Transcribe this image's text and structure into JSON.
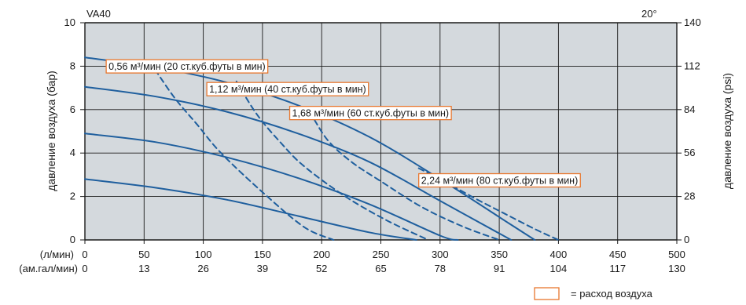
{
  "chart_data": {
    "type": "line",
    "title": "VA40",
    "temperature_label": "20°",
    "ylabel_left": "давление воздуха (бар)",
    "ylabel_right": "давление воздуха (psi)",
    "x_unit_primary": "(л/мин)",
    "x_unit_secondary": "(ам.гал/мин)",
    "xlim": [
      0,
      500
    ],
    "ylim": [
      0,
      10
    ],
    "ylim_right": [
      0,
      140
    ],
    "x_ticks": [
      "0",
      "50",
      "100",
      "150",
      "200",
      "250",
      "300",
      "350",
      "400",
      "450",
      "500"
    ],
    "x_ticks_secondary": [
      "0",
      "13",
      "26",
      "39",
      "52",
      "65",
      "78",
      "91",
      "104",
      "117",
      "130"
    ],
    "y_ticks_left": [
      "0",
      "2",
      "4",
      "6",
      "8",
      "10"
    ],
    "y_ticks_right": [
      "0",
      "28",
      "56",
      "84",
      "112",
      "140"
    ],
    "grid": true,
    "series": [
      {
        "style": "solid",
        "x": [
          0,
          60,
          120,
          180,
          240,
          300,
          360,
          380
        ],
        "y": [
          8.4,
          7.95,
          7.25,
          6.2,
          4.75,
          2.8,
          0.7,
          0
        ]
      },
      {
        "style": "solid",
        "x": [
          0,
          60,
          120,
          180,
          240,
          300,
          360
        ],
        "y": [
          7.05,
          6.6,
          5.9,
          4.9,
          3.6,
          1.8,
          0
        ]
      },
      {
        "style": "solid",
        "x": [
          0,
          60,
          120,
          180,
          240,
          300,
          315
        ],
        "y": [
          4.9,
          4.5,
          3.8,
          2.85,
          1.65,
          0.2,
          0
        ]
      },
      {
        "style": "solid",
        "x": [
          0,
          60,
          120,
          180,
          240,
          280
        ],
        "y": [
          2.8,
          2.4,
          1.85,
          1.1,
          0.35,
          0
        ]
      },
      {
        "style": "dashed",
        "x": [
          55,
          75,
          95,
          115,
          150,
          185,
          210
        ],
        "y": [
          8.2,
          6.6,
          5.3,
          4.0,
          2.2,
          0.6,
          0
        ]
      },
      {
        "style": "dashed",
        "x": [
          128,
          145,
          165,
          185,
          220,
          255,
          290
        ],
        "y": [
          7.3,
          5.8,
          4.5,
          3.4,
          2.0,
          0.9,
          0
        ]
      },
      {
        "style": "dashed",
        "x": [
          190,
          205,
          225,
          250,
          285,
          320,
          350
        ],
        "y": [
          5.9,
          4.6,
          3.6,
          2.7,
          1.5,
          0.6,
          0
        ]
      },
      {
        "style": "dashed",
        "x": [
          282,
          300,
          330,
          355,
          380,
          400
        ],
        "y": [
          3.3,
          2.8,
          1.9,
          1.2,
          0.5,
          0
        ]
      }
    ],
    "annotations": [
      {
        "text": "0,56 м³/мин (20 ст.куб.футы в мин)",
        "x": 18,
        "y": 8.3
      },
      {
        "text": "1,12  м³/мин (40 ст.куб.футы в мин)",
        "x": 103,
        "y": 7.25
      },
      {
        "text": "1,68 м³/мин (60 ст.куб.футы в мин)",
        "x": 173,
        "y": 6.15
      },
      {
        "text": "2,24 м³/мин (80 ст.куб.футы в мин)",
        "x": 282,
        "y": 3.05
      }
    ],
    "legend": {
      "text": "= расход воздуха",
      "position": "bottom-right",
      "box_color": "#e8772e"
    },
    "colors": {
      "line": "#1f5f9e",
      "plot_bg": "#d4d9dd",
      "grid": "#1a1a1a",
      "annotation_border": "#e8772e"
    }
  }
}
